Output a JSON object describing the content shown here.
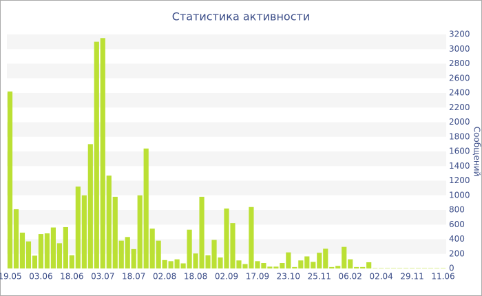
{
  "chart_data": {
    "type": "bar",
    "title": "Статистика активности",
    "y_label": "Сообщений",
    "categories": [
      "19.05",
      null,
      null,
      null,
      null,
      "03.06",
      null,
      null,
      null,
      null,
      "18.06",
      null,
      null,
      null,
      null,
      "03.07",
      null,
      null,
      null,
      null,
      "18.07",
      null,
      null,
      null,
      null,
      "02.08",
      null,
      null,
      null,
      null,
      "18.08",
      null,
      null,
      null,
      null,
      "02.09",
      null,
      null,
      null,
      null,
      "17.09",
      null,
      null,
      null,
      null,
      "23.10",
      null,
      null,
      null,
      null,
      "25.11",
      null,
      null,
      null,
      null,
      "06.02",
      null,
      null,
      null,
      null,
      "02.04",
      null,
      null,
      null,
      null,
      "29.11",
      null,
      null,
      null,
      null,
      "11.06"
    ],
    "values": [
      2420,
      810,
      490,
      370,
      175,
      470,
      480,
      560,
      345,
      565,
      180,
      1120,
      1000,
      1700,
      3100,
      3150,
      1270,
      980,
      380,
      430,
      265,
      1000,
      1640,
      545,
      380,
      115,
      100,
      125,
      70,
      530,
      205,
      980,
      180,
      390,
      150,
      820,
      620,
      110,
      60,
      840,
      100,
      75,
      25,
      25,
      75,
      220,
      20,
      110,
      165,
      90,
      215,
      270,
      20,
      35,
      295,
      125,
      20,
      20,
      85,
      5,
      5,
      5,
      5,
      5,
      5,
      5,
      5,
      5,
      5,
      5,
      5
    ],
    "color": "#bbe034",
    "ylim": [
      0,
      3200
    ],
    "yticks": [
      0,
      200,
      400,
      600,
      800,
      1000,
      1200,
      1400,
      1600,
      1800,
      2000,
      2200,
      2400,
      2600,
      2800,
      3000,
      3200
    ],
    "grid": true
  }
}
